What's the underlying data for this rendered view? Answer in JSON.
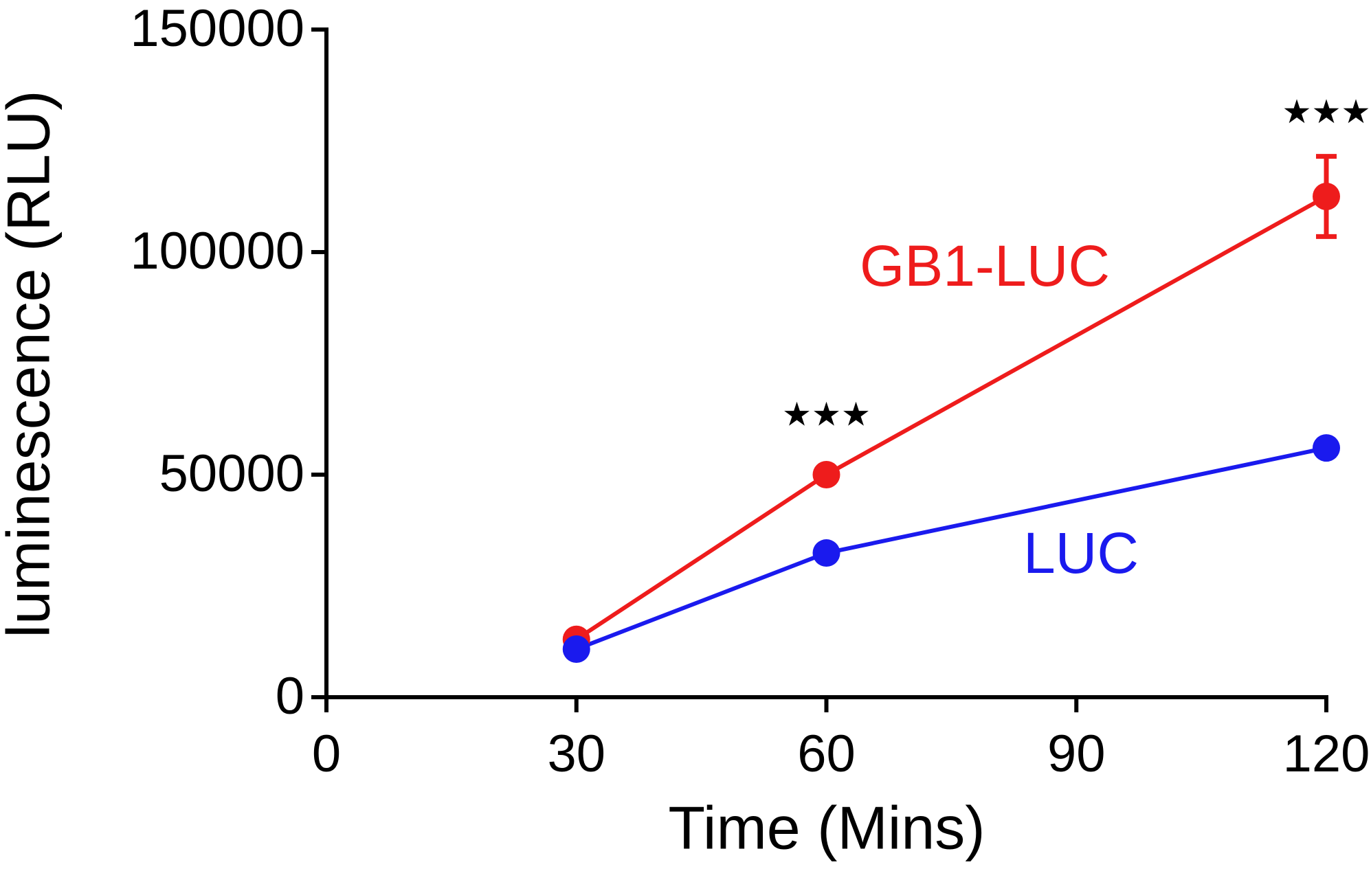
{
  "chart_data": {
    "type": "line",
    "x_label": "Time (Mins)",
    "y_label": "luminescence (RLU)",
    "x": [
      30,
      60,
      120
    ],
    "series": [
      {
        "name": "GB1-LUC",
        "color": "#ee1c1c",
        "values": [
          13000,
          50000,
          112500
        ],
        "errors": [
          null,
          null,
          9000
        ]
      },
      {
        "name": "LUC",
        "color": "#1a1aee",
        "values": [
          10800,
          32400,
          56000
        ]
      }
    ],
    "annotations": [
      {
        "text": "★★★",
        "x": 60,
        "y": 63000
      },
      {
        "text": "★★★",
        "x": 120,
        "y": 131000
      }
    ],
    "xlim": [
      0,
      120
    ],
    "xticks": [
      0,
      30,
      60,
      90,
      120
    ],
    "ylim": [
      0,
      150000
    ],
    "yticks": [
      0,
      50000,
      100000,
      150000
    ],
    "grid": false
  }
}
